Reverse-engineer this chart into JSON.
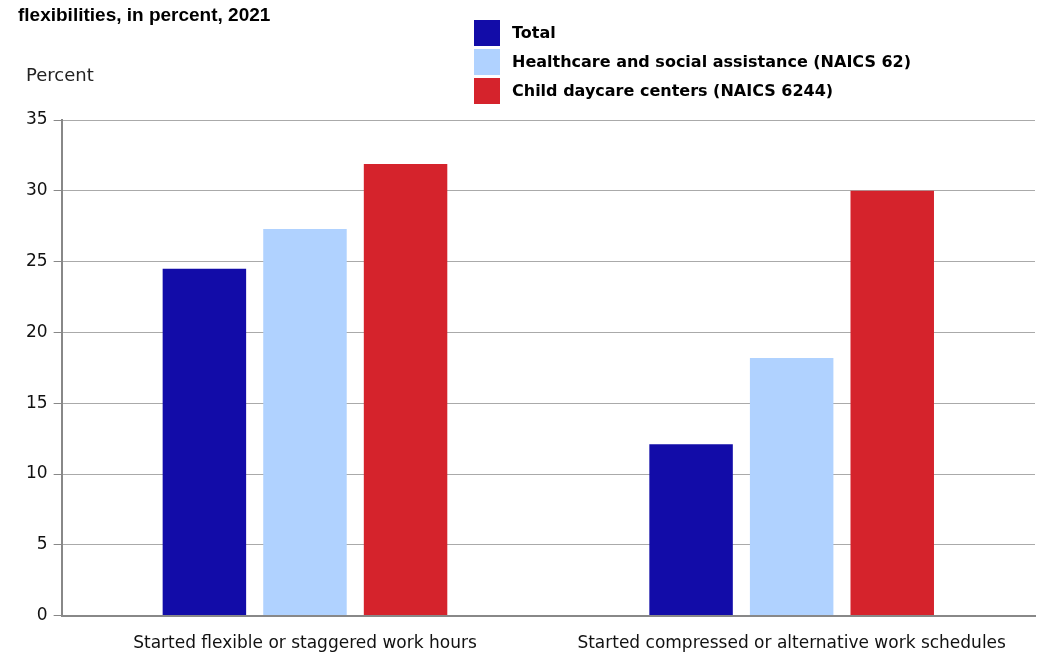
{
  "chart_data": {
    "type": "bar",
    "title": "flexibilities, in percent, 2021",
    "ylabel": "Percent",
    "categories": [
      "Started flexible or staggered work hours",
      "Started compressed or alternative work schedules"
    ],
    "series": [
      {
        "name": "Total",
        "color": "#120ca8",
        "values": [
          24.5,
          12.1
        ]
      },
      {
        "name": "Healthcare and social assistance (NAICS 62)",
        "color": "#b0d2ff",
        "values": [
          27.3,
          18.2
        ]
      },
      {
        "name": "Child daycare centers (NAICS 6244)",
        "color": "#d5232c",
        "values": [
          31.9,
          30.0
        ]
      }
    ],
    "ylim": [
      0,
      35
    ],
    "yticks": [
      0,
      5,
      10,
      15,
      20,
      25,
      30,
      35
    ],
    "grid": "y",
    "legend": "top"
  }
}
